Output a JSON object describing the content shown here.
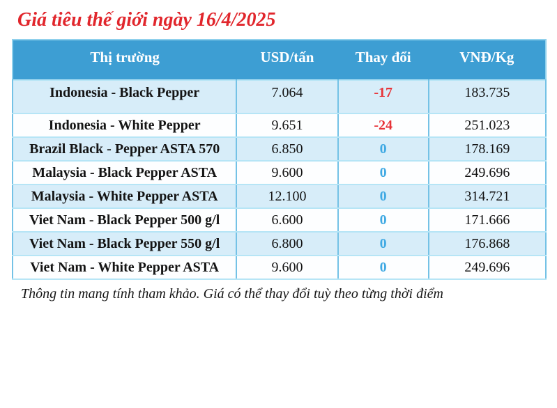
{
  "title": "Giá tiêu thế giới ngày 16/4/2025",
  "footer_note": "Thông tin mang tính tham khảo. Giá có thể thay đổi tuỳ theo từng thời điểm",
  "colors": {
    "title_red": "#e1262c",
    "header_bg": "#3d9ed3",
    "header_text": "#ffffff",
    "row_alt_bg": "#d7edf9",
    "row_bg": "#fdfeff",
    "border": "#8fd0ec",
    "change_negative": "#e73338",
    "change_zero": "#3fa9e3"
  },
  "chart_data": {
    "type": "table",
    "title": "Giá tiêu thế giới ngày 16/4/2025",
    "columns": [
      "Thị trường",
      "USD/tấn",
      "Thay đổi",
      "VNĐ/Kg"
    ],
    "rows": [
      {
        "market": "Indonesia - Black Pepper",
        "usd": "7.064",
        "change": "-17",
        "change_type": "negative",
        "vnd": "183.735"
      },
      {
        "market": "Indonesia - White Pepper",
        "usd": "9.651",
        "change": "-24",
        "change_type": "negative",
        "vnd": "251.023"
      },
      {
        "market": "Brazil Black - Pepper ASTA 570",
        "usd": "6.850",
        "change": "0",
        "change_type": "zero",
        "vnd": "178.169"
      },
      {
        "market": "Malaysia - Black Pepper ASTA",
        "usd": "9.600",
        "change": "0",
        "change_type": "zero",
        "vnd": "249.696"
      },
      {
        "market": "Malaysia - White Pepper ASTA",
        "usd": "12.100",
        "change": "0",
        "change_type": "zero",
        "vnd": "314.721"
      },
      {
        "market": "Viet Nam - Black Pepper 500 g/l",
        "usd": "6.600",
        "change": "0",
        "change_type": "zero",
        "vnd": "171.666"
      },
      {
        "market": "Viet Nam - Black Pepper 550 g/l",
        "usd": "6.800",
        "change": "0",
        "change_type": "zero",
        "vnd": "176.868"
      },
      {
        "market": "Viet Nam - White Pepper ASTA",
        "usd": "9.600",
        "change": "0",
        "change_type": "zero",
        "vnd": "249.696"
      }
    ]
  }
}
